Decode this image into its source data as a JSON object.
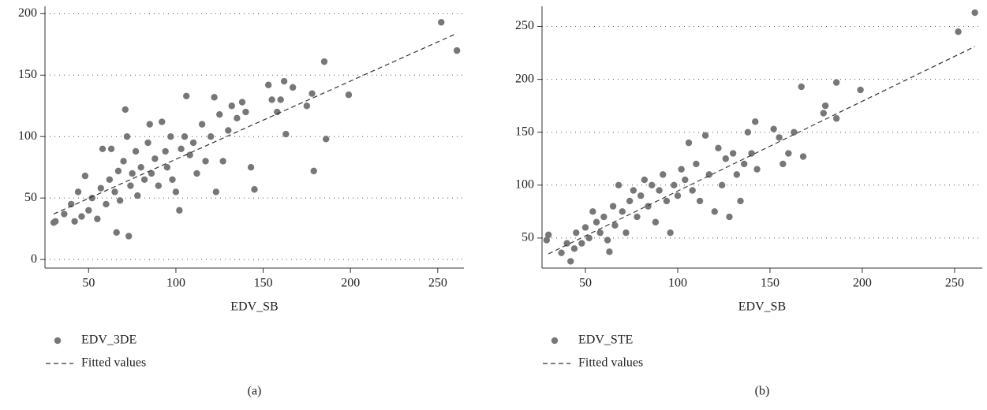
{
  "chart_data": [
    {
      "type": "scatter",
      "x_label": "EDV_SB",
      "caption": "(a)",
      "xlim": [
        25,
        265
      ],
      "ylim": [
        -7,
        206
      ],
      "xticks": [
        50,
        100,
        150,
        200,
        250
      ],
      "yticks": [
        0,
        50,
        100,
        150,
        200
      ],
      "grid": true,
      "series": [
        {
          "name": "EDV_3DE",
          "color": "#777777",
          "style": "points",
          "x": [
            30,
            31,
            36,
            40,
            42,
            44,
            46,
            48,
            50,
            52,
            55,
            57,
            58,
            60,
            62,
            63,
            65,
            66,
            67,
            68,
            70,
            71,
            72,
            73,
            74,
            75,
            77,
            78,
            80,
            82,
            84,
            85,
            86,
            88,
            90,
            92,
            94,
            95,
            97,
            98,
            100,
            102,
            103,
            105,
            106,
            108,
            110,
            112,
            115,
            117,
            120,
            122,
            123,
            125,
            127,
            130,
            132,
            135,
            138,
            140,
            143,
            145,
            153,
            155,
            158,
            160,
            162,
            163,
            167,
            175,
            178,
            179,
            185,
            186,
            199,
            252,
            261
          ],
          "values": [
            30,
            31,
            37,
            45,
            31,
            55,
            35,
            68,
            40,
            50,
            33,
            58,
            90,
            45,
            65,
            90,
            55,
            22,
            72,
            48,
            80,
            122,
            100,
            19,
            60,
            70,
            88,
            52,
            75,
            65,
            95,
            110,
            70,
            82,
            60,
            112,
            88,
            75,
            100,
            65,
            55,
            40,
            90,
            100,
            133,
            85,
            95,
            70,
            110,
            80,
            100,
            132,
            55,
            118,
            80,
            105,
            125,
            115,
            128,
            120,
            75,
            57,
            142,
            130,
            120,
            130,
            145,
            102,
            140,
            125,
            135,
            72,
            161,
            98,
            134,
            193,
            170
          ]
        },
        {
          "name": "Fitted values",
          "color": "#333333",
          "style": "dashed",
          "x": [
            30,
            261
          ],
          "values": [
            37,
            184
          ]
        }
      ]
    },
    {
      "type": "scatter",
      "x_label": "EDV_SB",
      "caption": "(b)",
      "xlim": [
        26.5,
        265
      ],
      "ylim": [
        21.6,
        269
      ],
      "xticks": [
        50,
        100,
        150,
        200,
        250
      ],
      "yticks": [
        50,
        100,
        150,
        200,
        250
      ],
      "grid": true,
      "series": [
        {
          "name": "EDV_STE",
          "color": "#777777",
          "style": "points",
          "x": [
            29,
            30,
            37,
            40,
            42,
            44,
            45,
            48,
            50,
            52,
            54,
            56,
            58,
            60,
            62,
            63,
            65,
            66,
            68,
            70,
            72,
            74,
            76,
            78,
            80,
            82,
            84,
            86,
            88,
            90,
            92,
            94,
            96,
            98,
            100,
            102,
            104,
            106,
            108,
            110,
            112,
            115,
            117,
            120,
            122,
            124,
            126,
            128,
            130,
            132,
            134,
            136,
            138,
            140,
            142,
            143,
            152,
            155,
            157,
            160,
            163,
            167,
            168,
            179,
            180,
            186,
            186,
            199,
            252,
            261
          ],
          "values": [
            48,
            53,
            36,
            45,
            28,
            40,
            55,
            45,
            60,
            50,
            75,
            65,
            55,
            70,
            48,
            37,
            80,
            62,
            100,
            75,
            55,
            85,
            95,
            70,
            90,
            105,
            80,
            100,
            65,
            95,
            110,
            85,
            55,
            100,
            90,
            115,
            105,
            140,
            95,
            120,
            85,
            147,
            110,
            75,
            135,
            100,
            125,
            70,
            130,
            110,
            85,
            120,
            150,
            130,
            160,
            115,
            153,
            145,
            120,
            130,
            150,
            193,
            127,
            168,
            175,
            197,
            163,
            190,
            245,
            263
          ]
        },
        {
          "name": "Fitted values",
          "color": "#333333",
          "style": "dashed",
          "x": [
            30,
            261
          ],
          "values": [
            35,
            231
          ]
        }
      ]
    }
  ]
}
